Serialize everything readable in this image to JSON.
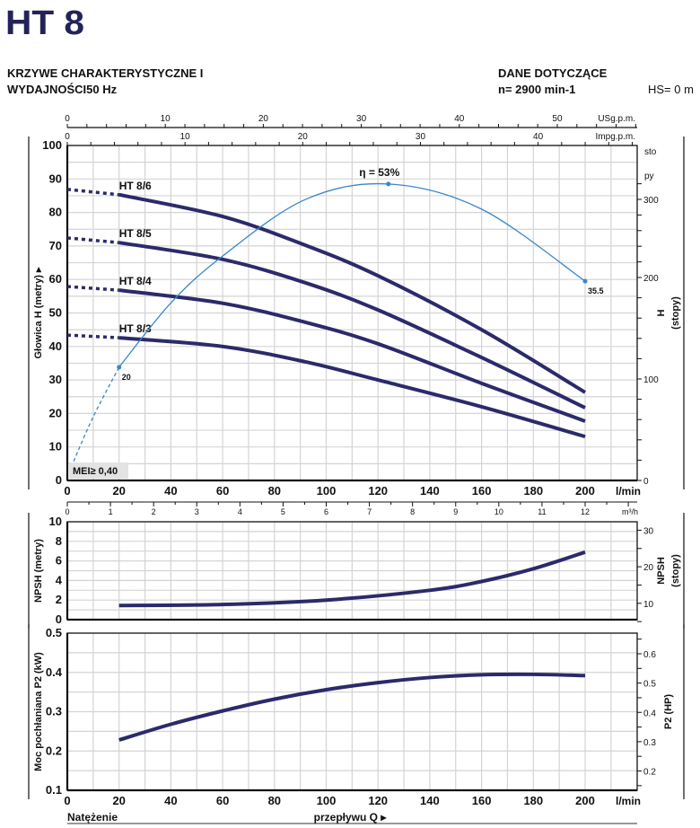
{
  "header": {
    "title": "HT 8",
    "subtitle_line1": "KRZYWE CHARAKTERYSTYCZNE I",
    "subtitle_line2": "WYDAJNOŚCI50 Hz",
    "ref_line1": "DANE DOTYCZĄCE",
    "ref_line2": "n= 2900 min-1",
    "hs": "HS= 0 m"
  },
  "colors": {
    "title": "#23235a",
    "curve": "#2b2a6b",
    "efficiency": "#3a86c8",
    "grid": "#d4d4d4"
  },
  "axes": {
    "q_ticks": [
      "0",
      "20",
      "40",
      "60",
      "80",
      "100",
      "120",
      "140",
      "160",
      "180",
      "200"
    ],
    "q_unit": "l/min",
    "m3h_ticks": [
      "0",
      "1",
      "2",
      "3",
      "4",
      "5",
      "6",
      "7",
      "8",
      "9",
      "10",
      "11",
      "12"
    ],
    "m3h_unit": "m³/h",
    "usgpm_ticks": [
      "0",
      "10",
      "20",
      "30",
      "40",
      "50"
    ],
    "usgpm_unit": "USg.p.m.",
    "impgpm_ticks": [
      "0",
      "10",
      "20",
      "30",
      "40"
    ],
    "impgpm_unit": "Impg.p.m.",
    "bottom_left": "Natężenie",
    "bottom_center": "przepływu Q ▸"
  },
  "chart_data": [
    {
      "type": "line",
      "ylabel": "Głowica H (metry) ▸",
      "ylabel_right": "H",
      "ylabel_right_unit": "(stopy)",
      "right_top_labels": [
        "sto",
        "py"
      ],
      "xlim": [
        0,
        220
      ],
      "ylim": [
        0,
        100
      ],
      "yticks": [
        "0",
        "10",
        "20",
        "30",
        "40",
        "50",
        "60",
        "70",
        "80",
        "90",
        "100"
      ],
      "yticks_right": [
        "0",
        "100",
        "200",
        "300"
      ],
      "grid": true,
      "series": [
        {
          "name": "HT 8/6",
          "dotted": [
            [
              0,
              86.9
            ],
            [
              20,
              85.3
            ]
          ],
          "points": [
            [
              20,
              85.3
            ],
            [
              60,
              78.8
            ],
            [
              92,
              70.2
            ],
            [
              120,
              61.1
            ],
            [
              160,
              45.0
            ],
            [
              200,
              26.3
            ]
          ]
        },
        {
          "name": "HT 8/5",
          "dotted": [
            [
              0,
              72.4
            ],
            [
              20,
              71.0
            ]
          ],
          "points": [
            [
              20,
              71.0
            ],
            [
              60,
              66.0
            ],
            [
              92,
              59.0
            ],
            [
              120,
              50.9
            ],
            [
              160,
              36.7
            ],
            [
              200,
              21.7
            ]
          ]
        },
        {
          "name": "HT 8/4",
          "dotted": [
            [
              0,
              57.9
            ],
            [
              20,
              56.8
            ]
          ],
          "points": [
            [
              20,
              56.8
            ],
            [
              60,
              52.9
            ],
            [
              92,
              47.2
            ],
            [
              120,
              40.8
            ],
            [
              160,
              29.0
            ],
            [
              200,
              17.7
            ]
          ]
        },
        {
          "name": "HT 8/3",
          "dotted": [
            [
              0,
              43.4
            ],
            [
              20,
              42.6
            ]
          ],
          "points": [
            [
              20,
              42.6
            ],
            [
              60,
              40.0
            ],
            [
              92,
              35.4
            ],
            [
              120,
              30.0
            ],
            [
              160,
              22.0
            ],
            [
              200,
              13.1
            ]
          ]
        }
      ],
      "efficiency": {
        "dashed": [
          [
            1.5,
            4.0
          ],
          [
            10,
            19
          ],
          [
            20,
            33.8
          ]
        ],
        "points": [
          [
            20,
            33.8
          ],
          [
            40,
            53
          ],
          [
            60,
            67
          ],
          [
            92,
            83.9
          ],
          [
            124,
            88.5
          ],
          [
            160,
            81
          ],
          [
            200,
            59.5
          ]
        ],
        "labels": [
          {
            "q": 20,
            "text": "20"
          },
          {
            "q": 124,
            "text": "η = 53%"
          },
          {
            "q": 200,
            "text": "35.5"
          }
        ]
      },
      "mei": "MEI≥ 0,40"
    },
    {
      "type": "line",
      "ylabel": "NPSH (metry)",
      "ylabel_right": "NPSH",
      "ylabel_right_unit": "(stopy)",
      "xlim": [
        0,
        220
      ],
      "ylim": [
        0,
        10
      ],
      "yticks": [
        "0",
        "2",
        "4",
        "6",
        "8",
        "10"
      ],
      "yticks_right": [
        "10",
        "20",
        "30"
      ],
      "grid": true,
      "series": [
        {
          "points": [
            [
              20,
              1.45
            ],
            [
              60,
              1.55
            ],
            [
              100,
              2.0
            ],
            [
              140,
              3.0
            ],
            [
              160,
              3.9
            ],
            [
              180,
              5.2
            ],
            [
              200,
              6.9
            ]
          ]
        }
      ]
    },
    {
      "type": "line",
      "ylabel": "Moc pochłaniana P2 (kW)",
      "ylabel_right": "P2 (HP)",
      "xlim": [
        0,
        220
      ],
      "ylim": [
        0.1,
        0.5
      ],
      "yticks": [
        "0.1",
        "0.2",
        "0.3",
        "0.4",
        "0.5"
      ],
      "yticks_right": [
        "0.2",
        "0.3",
        "0.4",
        "0.5",
        "0.6"
      ],
      "grid": true,
      "series": [
        {
          "points": [
            [
              20,
              0.228
            ],
            [
              40,
              0.268
            ],
            [
              60,
              0.302
            ],
            [
              80,
              0.332
            ],
            [
              100,
              0.356
            ],
            [
              120,
              0.374
            ],
            [
              140,
              0.387
            ],
            [
              160,
              0.394
            ],
            [
              180,
              0.395
            ],
            [
              200,
              0.392
            ]
          ]
        }
      ]
    }
  ]
}
